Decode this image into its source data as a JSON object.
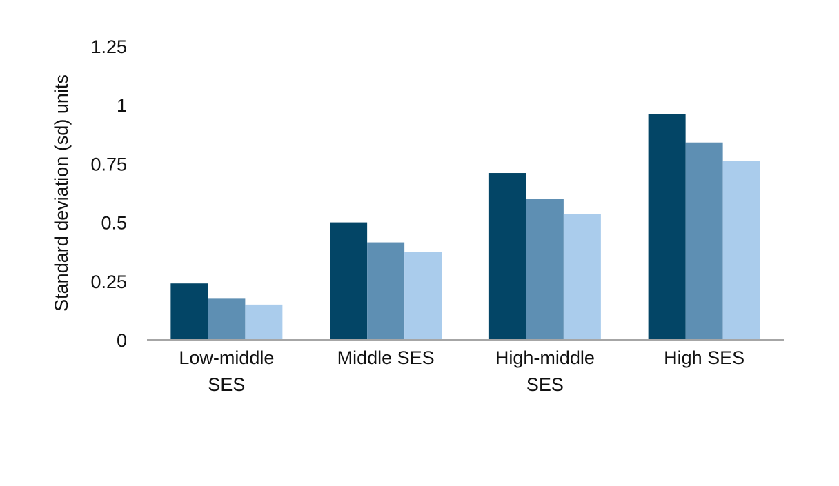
{
  "chart_data": {
    "type": "bar",
    "title": "",
    "xlabel": "",
    "ylabel": "Standard deviation (sd) units",
    "ylim": [
      0,
      1.25
    ],
    "yticks": [
      "0",
      "0.25",
      "0.5",
      "0.75",
      "1",
      "1.25"
    ],
    "ytick_values": [
      0,
      0.25,
      0.5,
      0.75,
      1,
      1.25
    ],
    "categories": [
      [
        "Low-middle",
        "SES"
      ],
      [
        "Middle SES"
      ],
      [
        "High-middle",
        "SES"
      ],
      [
        "High SES"
      ]
    ],
    "series": [
      {
        "color": "#034566",
        "values": [
          0.24,
          0.5,
          0.71,
          0.96
        ]
      },
      {
        "color": "#5e8fb3",
        "values": [
          0.175,
          0.415,
          0.6,
          0.84
        ]
      },
      {
        "color": "#aaccec",
        "values": [
          0.15,
          0.375,
          0.535,
          0.76
        ]
      }
    ],
    "grid": false,
    "legend": "none",
    "axis_color": "#a6a6a6"
  }
}
